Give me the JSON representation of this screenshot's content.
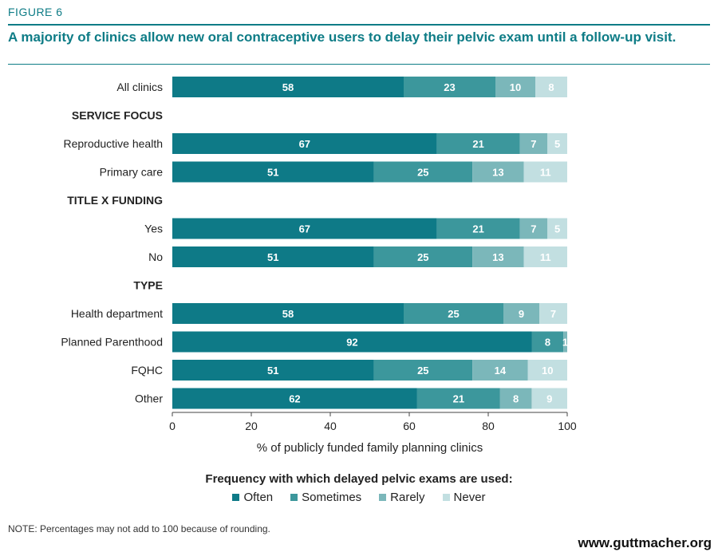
{
  "figure_label": "FIGURE 6",
  "title": "A majority of clinics allow new oral contraceptive users to delay their pelvic exam until a follow-up visit.",
  "note": "NOTE: Percentages may not add to 100 because of rounding.",
  "source": "www.guttmacher.org",
  "colors": {
    "often": "#0e7a87",
    "sometimes": "#3c979c",
    "rarely": "#7bb7ba",
    "never": "#c2dfe1",
    "accent": "#0e7c86"
  },
  "chart_data": {
    "type": "bar",
    "orientation": "horizontal",
    "stacked": true,
    "xlabel": "% of publicly funded family planning clinics",
    "xlim": [
      0,
      100
    ],
    "xticks": [
      0,
      20,
      40,
      60,
      80,
      100
    ],
    "legend_title": "Frequency with which delayed pelvic exams are used:",
    "legend_position": "bottom",
    "series_names": [
      "Often",
      "Sometimes",
      "Rarely",
      "Never"
    ],
    "rows": [
      {
        "kind": "bar",
        "label": "All clinics",
        "values": [
          58,
          23,
          10,
          8
        ],
        "labels": [
          "58",
          "23",
          "10",
          "8"
        ]
      },
      {
        "kind": "header",
        "label": "SERVICE FOCUS"
      },
      {
        "kind": "bar",
        "label": "Reproductive health",
        "values": [
          67,
          21,
          7,
          5
        ],
        "labels": [
          "67",
          "21",
          "7",
          "5"
        ]
      },
      {
        "kind": "bar",
        "label": "Primary care",
        "values": [
          51,
          25,
          13,
          11
        ],
        "labels": [
          "51",
          "25",
          "13",
          "11"
        ]
      },
      {
        "kind": "header",
        "label": "TITLE X FUNDING"
      },
      {
        "kind": "bar",
        "label": "Yes",
        "values": [
          67,
          21,
          7,
          5
        ],
        "labels": [
          "67",
          "21",
          "7",
          "5"
        ]
      },
      {
        "kind": "bar",
        "label": "No",
        "values": [
          51,
          25,
          13,
          11
        ],
        "labels": [
          "51",
          "25",
          "13",
          "11"
        ]
      },
      {
        "kind": "header",
        "label": "TYPE"
      },
      {
        "kind": "bar",
        "label": "Health department",
        "values": [
          58,
          25,
          9,
          7
        ],
        "labels": [
          "58",
          "25",
          "9",
          "7"
        ]
      },
      {
        "kind": "bar",
        "label": "Planned Parenthood",
        "values": [
          92,
          8,
          1,
          0
        ],
        "labels": [
          "92",
          "8",
          "1",
          ""
        ]
      },
      {
        "kind": "bar",
        "label": "FQHC",
        "values": [
          51,
          25,
          14,
          10
        ],
        "labels": [
          "51",
          "25",
          "14",
          "10"
        ]
      },
      {
        "kind": "bar",
        "label": "Other",
        "values": [
          62,
          21,
          8,
          9
        ],
        "labels": [
          "62",
          "21",
          "8",
          "9"
        ]
      }
    ]
  }
}
